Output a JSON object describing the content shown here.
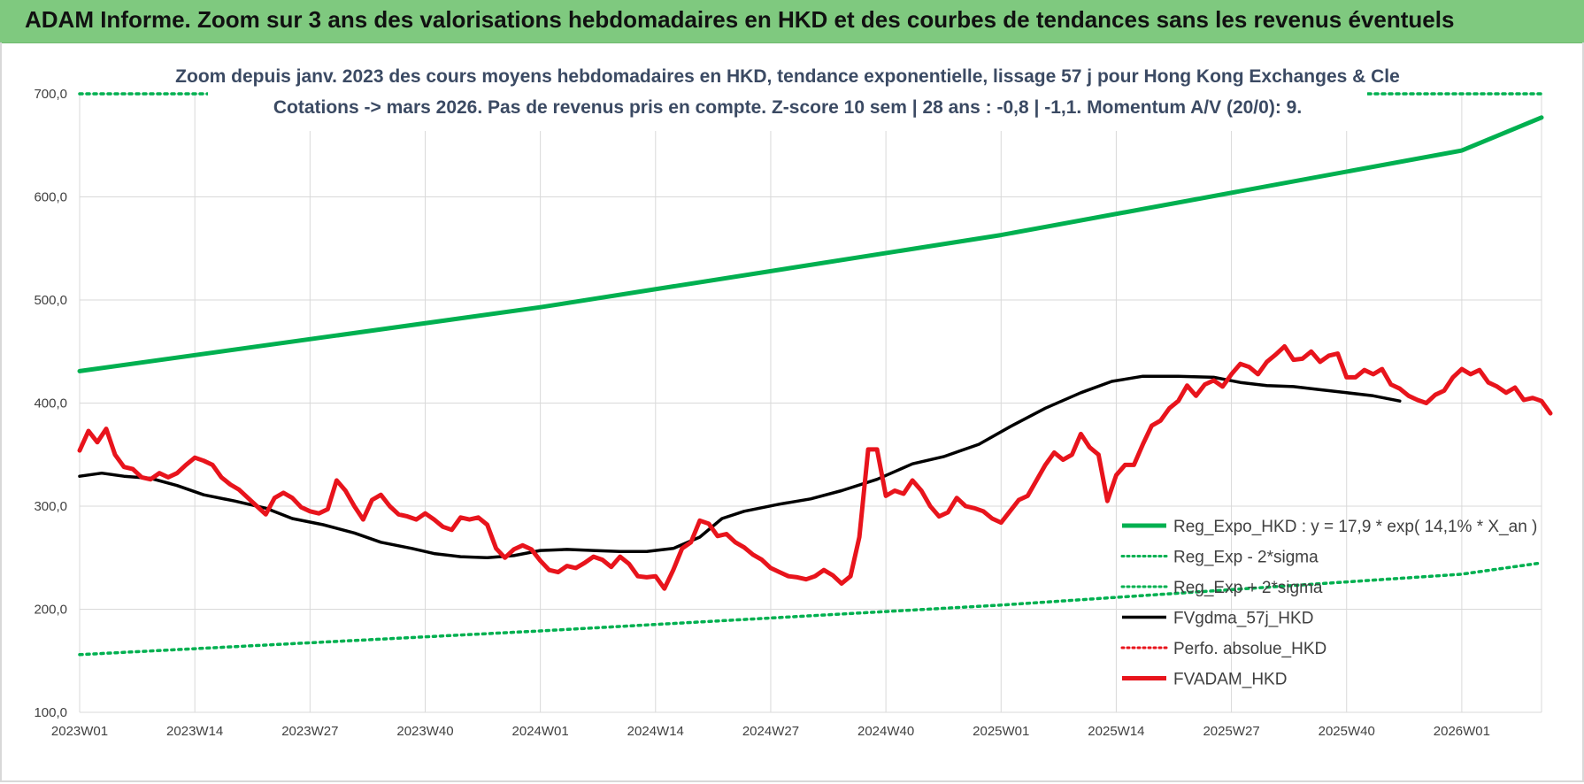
{
  "header": {
    "title": "ADAM Informe. Zoom sur 3 ans des valorisations hebdomadaires en HKD et des courbes de tendances sans les revenus éventuels"
  },
  "chart_data": {
    "type": "line",
    "title_line1": "Zoom depuis janv. 2023 des cours moyens hebdomadaires en HKD, tendance exponentielle, lissage 57 j pour Hong Kong Exchanges & Cle",
    "title_line2": "Cotations -> mars 2026. Pas de revenus pris en compte. Z-score 10 sem | 28 ans : -0,8 | -1,1. Momentum A/V (20/0): 9.",
    "xlabel": "",
    "ylabel": "",
    "ylim": [
      100,
      700
    ],
    "y_ticks": [
      "100,0",
      "200,0",
      "300,0",
      "400,0",
      "500,0",
      "600,0",
      "700,0"
    ],
    "x_ticks": [
      "2023W01",
      "2023W14",
      "2023W27",
      "2023W40",
      "2024W01",
      "2024W14",
      "2024W27",
      "2024W40",
      "2025W01",
      "2025W14",
      "2025W27",
      "2025W40",
      "2026W01"
    ],
    "n_weeks": 166,
    "grid": true,
    "legend_position": "bottom-right",
    "series": [
      {
        "name": "Reg_Expo_HKD : y = 17,9 * exp( 14,1% *  X_an )",
        "color": "#00b050",
        "style": "solid-thick",
        "points": [
          [
            0,
            431
          ],
          [
            52,
            493
          ],
          [
            104,
            563
          ],
          [
            156,
            645
          ],
          [
            165,
            677
          ]
        ]
      },
      {
        "name": "Reg_Exp - 2*sigma",
        "color": "#00b050",
        "style": "dotted",
        "points": [
          [
            0,
            156
          ],
          [
            52,
            179
          ],
          [
            104,
            204
          ],
          [
            156,
            234
          ],
          [
            165,
            245
          ]
        ]
      },
      {
        "name": "Reg_Exp + 2*sigma",
        "color": "#00b050",
        "style": "dotted",
        "points": [
          [
            0,
            700
          ],
          [
            165,
            700
          ]
        ]
      },
      {
        "name": "FVgdma_57j_HKD",
        "color": "#000000",
        "style": "solid",
        "points": [
          [
            0,
            329
          ],
          [
            5,
            332
          ],
          [
            10,
            329
          ],
          [
            16,
            327
          ],
          [
            22,
            320
          ],
          [
            28,
            311
          ],
          [
            35,
            305
          ],
          [
            42,
            298
          ],
          [
            48,
            288
          ],
          [
            55,
            282
          ],
          [
            62,
            274
          ],
          [
            68,
            265
          ],
          [
            75,
            259
          ],
          [
            80,
            254
          ],
          [
            86,
            251
          ],
          [
            92,
            250
          ],
          [
            98,
            252
          ],
          [
            104,
            257
          ],
          [
            110,
            258
          ],
          [
            116,
            257
          ],
          [
            122,
            256
          ],
          [
            128,
            256
          ],
          [
            134,
            259
          ],
          [
            140,
            270
          ],
          [
            145,
            288
          ],
          [
            150,
            295
          ],
          [
            158,
            302
          ],
          [
            165,
            307
          ],
          [
            172,
            315
          ],
          [
            180,
            326
          ],
          [
            188,
            341
          ],
          [
            195,
            348
          ],
          [
            203,
            360
          ],
          [
            210,
            377
          ],
          [
            218,
            395
          ],
          [
            226,
            410
          ],
          [
            233,
            421
          ],
          [
            240,
            426
          ],
          [
            248,
            426
          ],
          [
            256,
            425
          ],
          [
            262,
            420
          ],
          [
            268,
            417
          ],
          [
            274,
            416
          ],
          [
            280,
            413
          ],
          [
            286,
            410
          ],
          [
            292,
            407
          ],
          [
            298,
            402
          ]
        ]
      },
      {
        "name": "Perfo. absolue_HKD",
        "color": "#e8141c",
        "style": "dotted",
        "points": []
      },
      {
        "name": "FVADAM_HKD",
        "color": "#e8141c",
        "style": "solid-thick",
        "points": [
          [
            0,
            354
          ],
          [
            2,
            373
          ],
          [
            4,
            362
          ],
          [
            6,
            375
          ],
          [
            8,
            350
          ],
          [
            10,
            338
          ],
          [
            12,
            336
          ],
          [
            14,
            328
          ],
          [
            16,
            326
          ],
          [
            18,
            332
          ],
          [
            20,
            328
          ],
          [
            22,
            332
          ],
          [
            24,
            340
          ],
          [
            26,
            347
          ],
          [
            28,
            344
          ],
          [
            30,
            340
          ],
          [
            32,
            328
          ],
          [
            34,
            321
          ],
          [
            36,
            316
          ],
          [
            38,
            308
          ],
          [
            40,
            300
          ],
          [
            42,
            292
          ],
          [
            44,
            308
          ],
          [
            46,
            313
          ],
          [
            48,
            308
          ],
          [
            50,
            299
          ],
          [
            52,
            295
          ],
          [
            54,
            293
          ],
          [
            56,
            297
          ],
          [
            58,
            325
          ],
          [
            60,
            315
          ],
          [
            62,
            300
          ],
          [
            64,
            287
          ],
          [
            66,
            306
          ],
          [
            68,
            311
          ],
          [
            70,
            300
          ],
          [
            72,
            292
          ],
          [
            74,
            290
          ],
          [
            76,
            287
          ],
          [
            78,
            293
          ],
          [
            80,
            287
          ],
          [
            82,
            280
          ],
          [
            84,
            277
          ],
          [
            86,
            289
          ],
          [
            88,
            287
          ],
          [
            90,
            289
          ],
          [
            92,
            282
          ],
          [
            94,
            259
          ],
          [
            96,
            250
          ],
          [
            98,
            258
          ],
          [
            100,
            262
          ],
          [
            102,
            258
          ],
          [
            104,
            247
          ],
          [
            106,
            238
          ],
          [
            108,
            236
          ],
          [
            110,
            242
          ],
          [
            112,
            240
          ],
          [
            114,
            245
          ],
          [
            116,
            251
          ],
          [
            118,
            248
          ],
          [
            120,
            241
          ],
          [
            122,
            251
          ],
          [
            124,
            244
          ],
          [
            126,
            232
          ],
          [
            128,
            231
          ],
          [
            130,
            232
          ],
          [
            132,
            220
          ],
          [
            134,
            238
          ],
          [
            136,
            259
          ],
          [
            138,
            265
          ],
          [
            140,
            286
          ],
          [
            142,
            283
          ],
          [
            144,
            271
          ],
          [
            146,
            273
          ],
          [
            148,
            265
          ],
          [
            150,
            260
          ],
          [
            152,
            253
          ],
          [
            154,
            248
          ],
          [
            156,
            240
          ],
          [
            158,
            236
          ],
          [
            160,
            232
          ],
          [
            162,
            231
          ],
          [
            164,
            229
          ],
          [
            166,
            232
          ],
          [
            168,
            238
          ],
          [
            170,
            233
          ],
          [
            172,
            225
          ],
          [
            174,
            232
          ],
          [
            176,
            270
          ],
          [
            178,
            355
          ],
          [
            180,
            355
          ],
          [
            182,
            310
          ],
          [
            184,
            315
          ],
          [
            186,
            312
          ],
          [
            188,
            325
          ],
          [
            190,
            315
          ],
          [
            192,
            300
          ],
          [
            194,
            290
          ],
          [
            196,
            294
          ],
          [
            198,
            308
          ],
          [
            200,
            300
          ],
          [
            202,
            298
          ],
          [
            204,
            295
          ],
          [
            206,
            288
          ],
          [
            208,
            284
          ],
          [
            210,
            295
          ],
          [
            212,
            306
          ],
          [
            214,
            310
          ],
          [
            216,
            325
          ],
          [
            218,
            340
          ],
          [
            220,
            352
          ],
          [
            222,
            345
          ],
          [
            224,
            350
          ],
          [
            226,
            370
          ],
          [
            228,
            357
          ],
          [
            230,
            350
          ],
          [
            232,
            305
          ],
          [
            234,
            330
          ],
          [
            236,
            340
          ],
          [
            238,
            340
          ],
          [
            240,
            360
          ],
          [
            242,
            378
          ],
          [
            244,
            383
          ],
          [
            246,
            395
          ],
          [
            248,
            402
          ],
          [
            250,
            417
          ],
          [
            252,
            407
          ],
          [
            254,
            418
          ],
          [
            256,
            422
          ],
          [
            258,
            416
          ],
          [
            260,
            428
          ],
          [
            262,
            438
          ],
          [
            264,
            435
          ],
          [
            266,
            428
          ],
          [
            268,
            440
          ],
          [
            270,
            447
          ],
          [
            272,
            455
          ],
          [
            274,
            442
          ],
          [
            276,
            443
          ],
          [
            278,
            450
          ],
          [
            280,
            440
          ],
          [
            282,
            446
          ],
          [
            284,
            448
          ],
          [
            286,
            425
          ],
          [
            288,
            425
          ],
          [
            290,
            432
          ],
          [
            292,
            428
          ],
          [
            294,
            433
          ],
          [
            296,
            418
          ],
          [
            298,
            414
          ],
          [
            300,
            407
          ],
          [
            302,
            403
          ],
          [
            304,
            400
          ],
          [
            306,
            408
          ],
          [
            308,
            412
          ],
          [
            310,
            425
          ],
          [
            312,
            433
          ],
          [
            314,
            428
          ],
          [
            316,
            432
          ],
          [
            318,
            420
          ],
          [
            320,
            416
          ],
          [
            322,
            410
          ],
          [
            324,
            415
          ],
          [
            326,
            403
          ],
          [
            328,
            405
          ],
          [
            330,
            402
          ],
          [
            332,
            390
          ]
        ]
      }
    ]
  }
}
